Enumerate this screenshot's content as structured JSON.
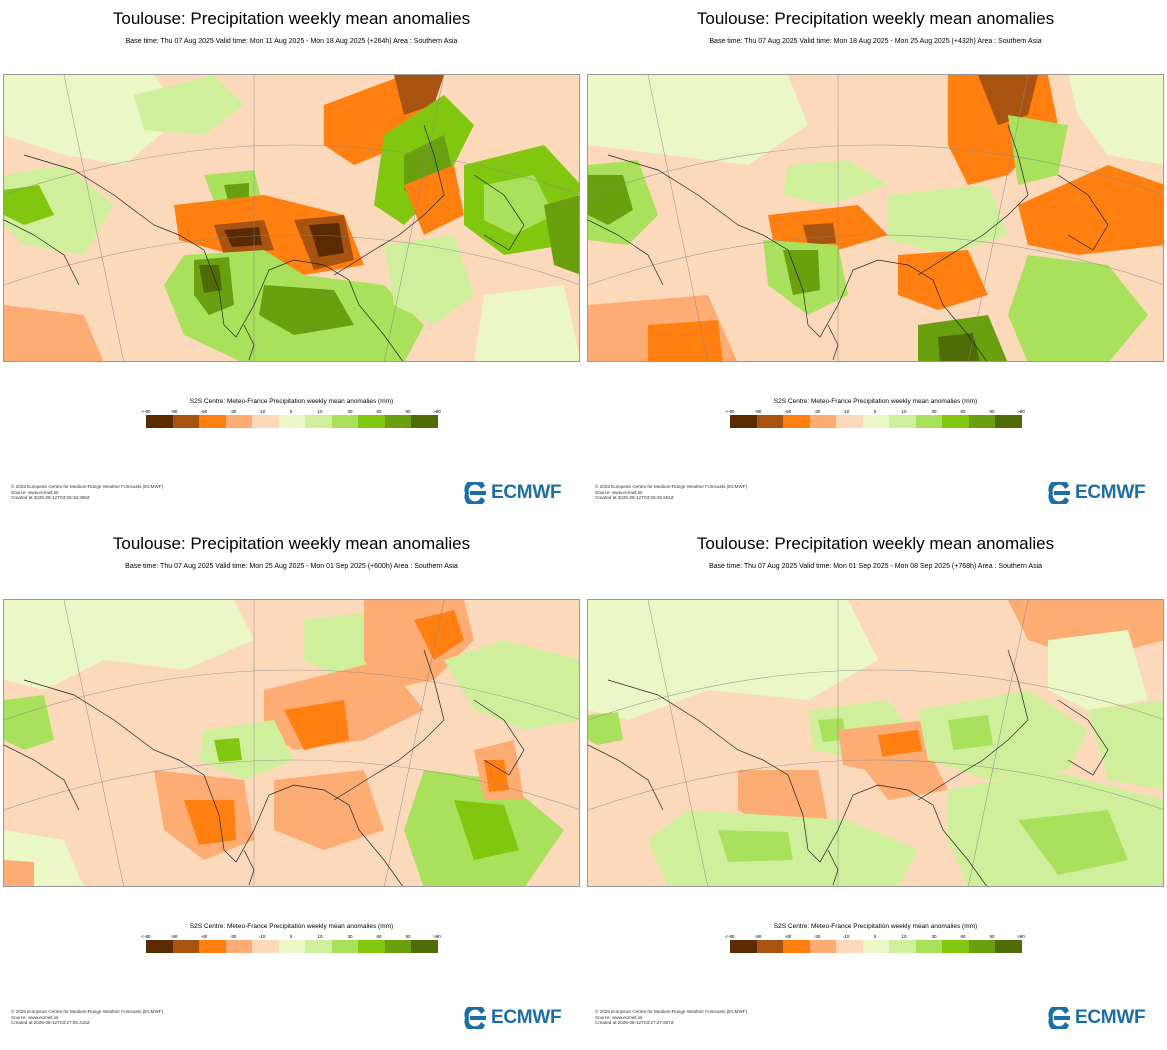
{
  "legend_colors": [
    "#5a2a00",
    "#a95310",
    "#ff7f10",
    "#fdac73",
    "#fdd9bb",
    "#ebf7c4",
    "#d0ef9d",
    "#a9e15c",
    "#82c70f",
    "#6a9f0f",
    "#4f6b06"
  ],
  "legend_ticks": [
    "<-90",
    "-90",
    "-60",
    "-30",
    "-10",
    "0",
    "10",
    "30",
    "60",
    "90",
    ">90"
  ],
  "logo_text": "ECMWF",
  "panels": [
    {
      "title": "Toulouse: Precipitation weekly mean anomalies",
      "subtitle": "Base time: Thu 07 Aug 2025 Valid time: Mon 11 Aug 2025 - Mon 18 Aug 2025 (+264h) Area : Southern Asia",
      "legend_title": "S2S Centre: Meteo-France Precipitation weekly mean anomalies (mm)",
      "footer": [
        "© 2025 European Centre for Medium-Range Weather Forecasts (ECMWF)",
        "Source: www.ecmwf.int",
        "Created at 2025-08-12T03:26:18.366Z"
      ]
    },
    {
      "title": "Toulouse: Precipitation weekly mean anomalies",
      "subtitle": "Base time: Thu 07 Aug 2025 Valid time: Mon 18 Aug 2025 - Mon 25 Aug 2025 (+432h) Area : Southern Asia",
      "legend_title": "S2S Centre: Meteo-France Precipitation weekly mean anomalies (mm)",
      "footer": [
        "© 2025 European Centre for Medium-Range Weather Forecasts (ECMWF)",
        "Source: www.ecmwf.int",
        "Created at 2025-08-12T03:26:45.551Z"
      ]
    },
    {
      "title": "Toulouse: Precipitation weekly mean anomalies",
      "subtitle": "Base time: Thu 07 Aug 2025 Valid time: Mon 25 Aug 2025 - Mon 01 Sep 2025 (+600h) Area : Southern Asia",
      "legend_title": "S2S Centre: Meteo-France Precipitation weekly mean anomalies (mm)",
      "footer": [
        "© 2025 European Centre for Medium-Range Weather Forecasts (ECMWF)",
        "Source: www.ecmwf.int",
        "Created at 2025-08-12T03:27:05.216Z"
      ]
    },
    {
      "title": "Toulouse: Precipitation weekly mean anomalies",
      "subtitle": "Base time: Thu 07 Aug 2025 Valid time: Mon 01 Sep 2025 - Mon 08 Sep 2025 (+768h) Area : Southern Asia",
      "legend_title": "S2S Centre: Meteo-France Precipitation weekly mean anomalies (mm)",
      "footer": [
        "© 2025 European Centre for Medium-Range Weather Forecasts (ECMWF)",
        "Source: www.ecmwf.int",
        "Created at 2025-08-12T03:27:27.807Z"
      ]
    }
  ]
}
